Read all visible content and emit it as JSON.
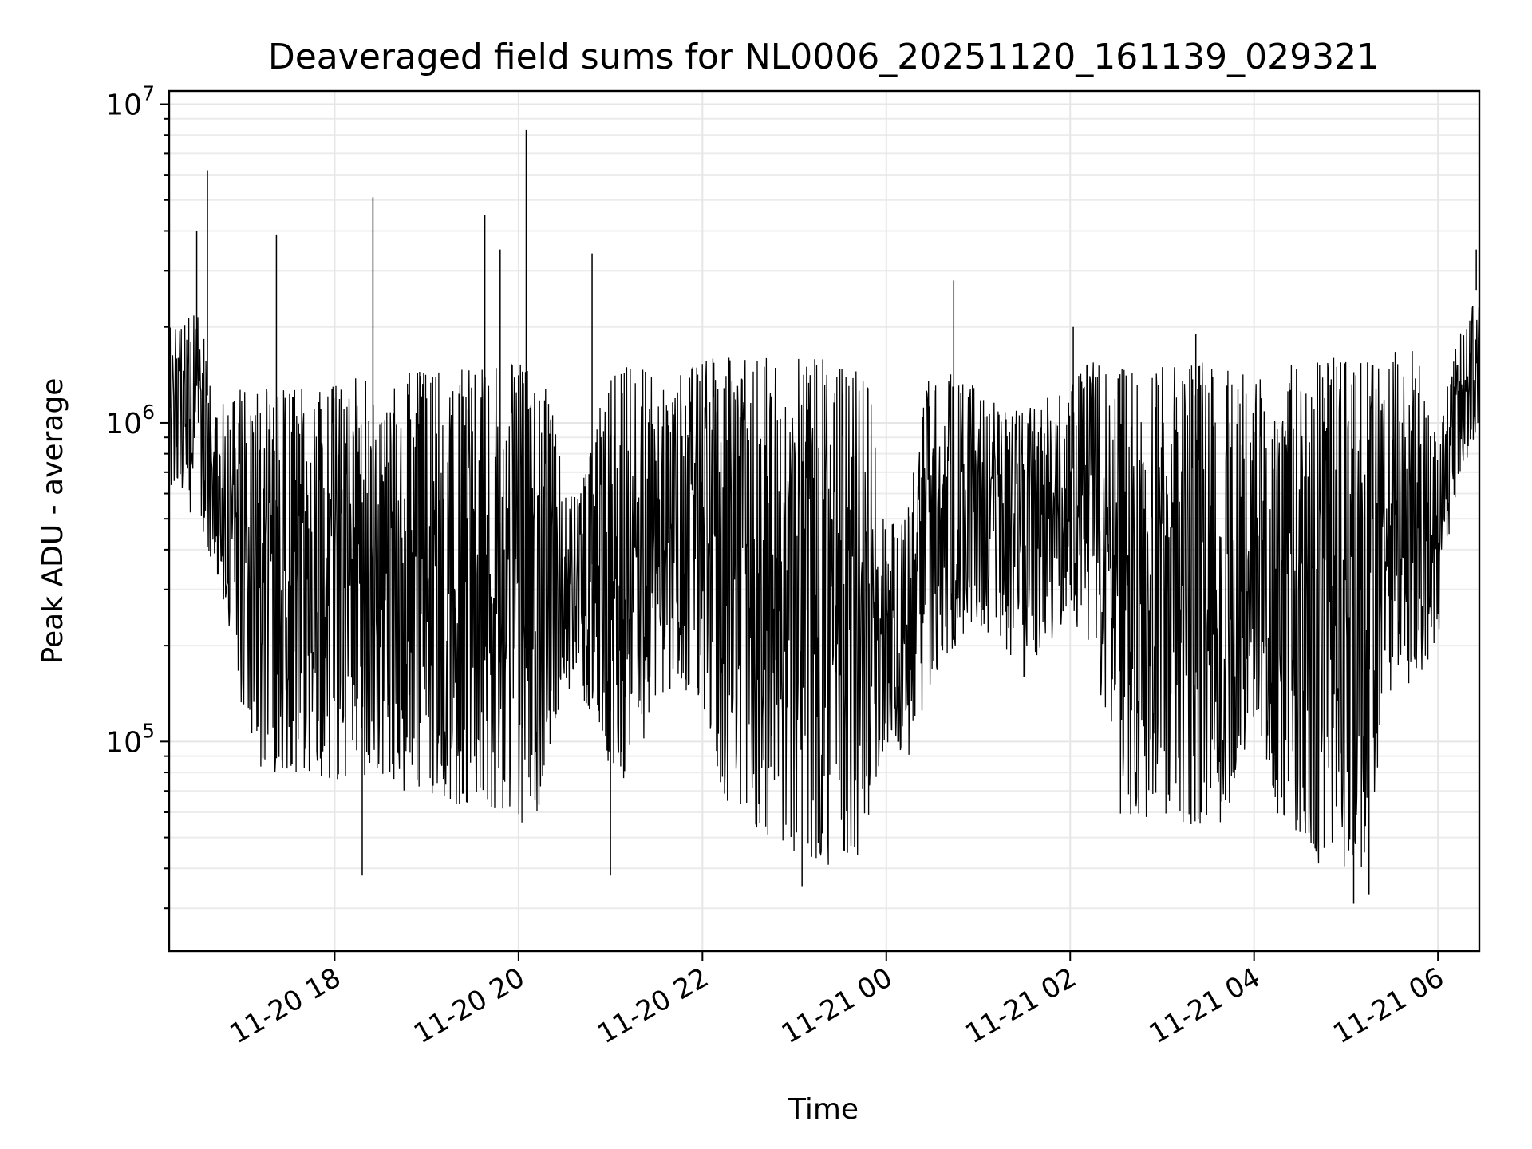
{
  "chart_data": {
    "type": "line",
    "title": "Deaveraged field sums for NL0006_20251120_161139_029321",
    "xlabel": "Time",
    "ylabel": "Peak ADU - average",
    "yscale": "log",
    "ylim": [
      22000,
      11000000
    ],
    "xlim": [
      "2025-11-20 16:12",
      "2025-11-21 06:27"
    ],
    "grid": true,
    "line_color": "#000000",
    "x_ticks": [
      {
        "label": "11-20 18",
        "time": "2025-11-20 18:00"
      },
      {
        "label": "11-20 20",
        "time": "2025-11-20 20:00"
      },
      {
        "label": "11-20 22",
        "time": "2025-11-20 22:00"
      },
      {
        "label": "11-21 00",
        "time": "2025-11-21 00:00"
      },
      {
        "label": "11-21 02",
        "time": "2025-11-21 02:00"
      },
      {
        "label": "11-21 04",
        "time": "2025-11-21 04:00"
      },
      {
        "label": "11-21 06",
        "time": "2025-11-21 06:00"
      }
    ],
    "y_ticks": [
      {
        "base": "10",
        "exp": "5",
        "value": 100000
      },
      {
        "base": "10",
        "exp": "6",
        "value": 1000000
      },
      {
        "base": "10",
        "exp": "7",
        "value": 10000000
      }
    ],
    "series": [
      {
        "x": [
          "2025-11-20 16:12",
          "2025-11-20 16:30",
          "2025-11-20 16:45",
          "2025-11-20 17:00",
          "2025-11-20 17:15",
          "2025-11-20 17:30",
          "2025-11-20 17:45",
          "2025-11-20 18:00",
          "2025-11-20 18:15",
          "2025-11-20 18:30",
          "2025-11-20 18:45",
          "2025-11-20 19:00",
          "2025-11-20 19:15",
          "2025-11-20 19:30",
          "2025-11-20 19:45",
          "2025-11-20 20:00",
          "2025-11-20 20:15",
          "2025-11-20 20:30",
          "2025-11-20 20:45",
          "2025-11-20 21:00",
          "2025-11-20 21:15",
          "2025-11-20 21:30",
          "2025-11-20 21:45",
          "2025-11-20 22:00",
          "2025-11-20 22:15",
          "2025-11-20 22:30",
          "2025-11-20 22:45",
          "2025-11-20 23:00",
          "2025-11-20 23:15",
          "2025-11-20 23:30",
          "2025-11-20 23:45",
          "2025-11-21 00:00",
          "2025-11-21 00:15",
          "2025-11-21 00:30",
          "2025-11-21 00:45",
          "2025-11-21 01:00",
          "2025-11-21 01:15",
          "2025-11-21 01:30",
          "2025-11-21 01:45",
          "2025-11-21 02:00",
          "2025-11-21 02:15",
          "2025-11-21 02:30",
          "2025-11-21 02:45",
          "2025-11-21 03:00",
          "2025-11-21 03:15",
          "2025-11-21 03:30",
          "2025-11-21 03:45",
          "2025-11-21 04:00",
          "2025-11-21 04:15",
          "2025-11-21 04:30",
          "2025-11-21 04:45",
          "2025-11-21 05:00",
          "2025-11-21 05:15",
          "2025-11-21 05:30",
          "2025-11-21 05:45",
          "2025-11-21 06:00",
          "2025-11-21 06:15",
          "2025-11-21 06:27"
        ],
        "low": [
          600000,
          500000,
          300000,
          90000,
          80000,
          80000,
          80000,
          75000,
          80000,
          75000,
          70000,
          70000,
          65000,
          60000,
          60000,
          55000,
          60000,
          150000,
          130000,
          80000,
          70000,
          140000,
          150000,
          120000,
          60000,
          55000,
          50000,
          45000,
          42000,
          40000,
          45000,
          100000,
          90000,
          150000,
          200000,
          230000,
          200000,
          150000,
          200000,
          250000,
          180000,
          60000,
          55000,
          60000,
          55000,
          55000,
          55000,
          120000,
          60000,
          45000,
          40000,
          38000,
          40000,
          150000,
          150000,
          200000,
          700000,
          900000
        ],
        "high": [
          2000000,
          2200000,
          1200000,
          1300000,
          1300000,
          1300000,
          1300000,
          1300000,
          1400000,
          1450000,
          1450000,
          1450000,
          1450000,
          1500000,
          1500000,
          1550000,
          1500000,
          600000,
          700000,
          1500000,
          1500000,
          1500000,
          1400000,
          1600000,
          1600000,
          1600000,
          1600000,
          1600000,
          1600000,
          1600000,
          1500000,
          450000,
          600000,
          1500000,
          1400000,
          1300000,
          1100000,
          1100000,
          1200000,
          1300000,
          1600000,
          1500000,
          1400000,
          1500000,
          1500000,
          1600000,
          1500000,
          1400000,
          1500000,
          1600000,
          1600000,
          1600000,
          1600000,
          1700000,
          1700000,
          800000,
          2000000,
          2500000
        ],
        "spikes": [
          {
            "time": "2025-11-20 16:37",
            "value": 6200000
          },
          {
            "time": "2025-11-20 16:30",
            "value": 4000000
          },
          {
            "time": "2025-11-20 17:22",
            "value": 3900000
          },
          {
            "time": "2025-11-20 18:25",
            "value": 5100000
          },
          {
            "time": "2025-11-20 19:38",
            "value": 4500000
          },
          {
            "time": "2025-11-20 19:48",
            "value": 3500000
          },
          {
            "time": "2025-11-20 20:05",
            "value": 8300000
          },
          {
            "time": "2025-11-20 20:48",
            "value": 3400000
          },
          {
            "time": "2025-11-21 00:44",
            "value": 2800000
          },
          {
            "time": "2025-11-21 02:02",
            "value": 2000000
          },
          {
            "time": "2025-11-21 03:22",
            "value": 1900000
          },
          {
            "time": "2025-11-21 06:25",
            "value": 3500000
          },
          {
            "time": "2025-11-20 18:18",
            "value": 38000
          },
          {
            "time": "2025-11-20 21:00",
            "value": 38000
          },
          {
            "time": "2025-11-20 23:05",
            "value": 35000
          },
          {
            "time": "2025-11-21 05:05",
            "value": 31000
          },
          {
            "time": "2025-11-21 05:15",
            "value": 33000
          }
        ]
      }
    ]
  }
}
